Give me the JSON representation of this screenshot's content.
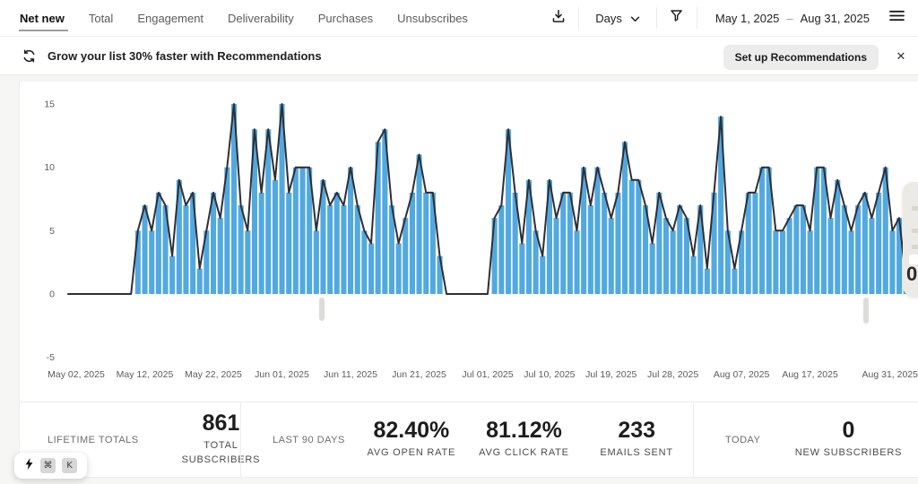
{
  "nav": {
    "tabs": [
      {
        "label": "Net new",
        "active": true
      },
      {
        "label": "Total",
        "active": false
      },
      {
        "label": "Engagement",
        "active": false
      },
      {
        "label": "Deliverability",
        "active": false
      },
      {
        "label": "Purchases",
        "active": false
      },
      {
        "label": "Unsubscribes",
        "active": false
      }
    ],
    "granularity": "Days",
    "date_start": "May 1, 2025",
    "date_separator": "–",
    "date_end": "Aug 31, 2025"
  },
  "banner": {
    "message": "Grow your list 30% faster with Recommendations",
    "cta_label": "Set up Recommendations",
    "close_glyph": "✕"
  },
  "chart_data": {
    "type": "bar",
    "title": "",
    "xlabel": "",
    "ylabel": "",
    "start_date": "May 01, 2025",
    "end_date": "Aug 31, 2025",
    "values": [
      0,
      0,
      0,
      0,
      0,
      0,
      0,
      0,
      0,
      0,
      5,
      7,
      5,
      8,
      7,
      3,
      9,
      7,
      8,
      2,
      5,
      8,
      6,
      10,
      15,
      7,
      5,
      13,
      8,
      13,
      9,
      15,
      8,
      10,
      10,
      10,
      5,
      9,
      7,
      8,
      7,
      10,
      7,
      5,
      4,
      12,
      13,
      7,
      4,
      6,
      8,
      11,
      8,
      8,
      3,
      0,
      0,
      0,
      0,
      0,
      0,
      0,
      6,
      7,
      13,
      8,
      4,
      9,
      5,
      3,
      9,
      6,
      8,
      8,
      5,
      10,
      7,
      10,
      8,
      6,
      8,
      12,
      9,
      9,
      7,
      4,
      8,
      6,
      5,
      7,
      6,
      3,
      7,
      2,
      8,
      14,
      5,
      2,
      5,
      8,
      8,
      10,
      10,
      5,
      5,
      6,
      7,
      7,
      5,
      10,
      10,
      6,
      9,
      7,
      5,
      7,
      8,
      6,
      8,
      10,
      5,
      6,
      1
    ],
    "x_ticks": [
      {
        "label": "May 02, 2025",
        "day": 2
      },
      {
        "label": "May 12, 2025",
        "day": 12
      },
      {
        "label": "May 22, 2025",
        "day": 22
      },
      {
        "label": "Jun 01, 2025",
        "day": 32
      },
      {
        "label": "Jun 11, 2025",
        "day": 42
      },
      {
        "label": "Jun 21, 2025",
        "day": 52
      },
      {
        "label": "Jul 01, 2025",
        "day": 62
      },
      {
        "label": "Jul 10, 2025",
        "day": 71
      },
      {
        "label": "Jul 19, 2025",
        "day": 80
      },
      {
        "label": "Jul 28, 2025",
        "day": 89
      },
      {
        "label": "Aug 07, 2025",
        "day": 99
      },
      {
        "label": "Aug 17, 2025",
        "day": 109
      },
      {
        "label": "Aug 31, 2025",
        "day": 123
      }
    ],
    "y_ticks": [
      15,
      10,
      5,
      0,
      -5
    ],
    "ylim": [
      -5,
      15
    ],
    "grid": false,
    "legend": null,
    "bar_color": "#52A9E0",
    "line_color": "#2E2E36"
  },
  "tooltip": {
    "partial_value": "0"
  },
  "stats": {
    "lifetime": {
      "group_label": "LIFETIME TOTALS",
      "items": [
        {
          "value": "861",
          "label": "TOTAL SUBSCRIBERS"
        }
      ]
    },
    "last90": {
      "group_label": "LAST 90 DAYS",
      "items": [
        {
          "value": "82.40%",
          "label": "AVG OPEN RATE"
        },
        {
          "value": "81.12%",
          "label": "AVG CLICK RATE"
        },
        {
          "value": "233",
          "label": "EMAILS SENT"
        }
      ]
    },
    "today": {
      "group_label": "TODAY",
      "items": [
        {
          "value": "0",
          "label": "NEW SUBSCRIBERS"
        }
      ]
    }
  },
  "shortcut": {
    "modifier": "⌘",
    "key": "K"
  }
}
